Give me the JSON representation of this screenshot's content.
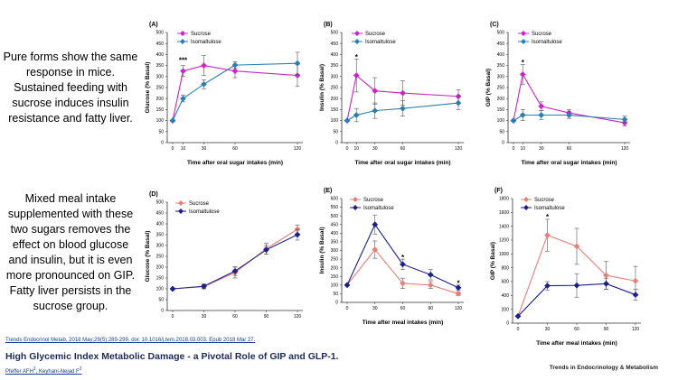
{
  "side_text_top": "Pure forms show the same response in mice. Sustained feeding with sucrose induces insulin resistance and fatty liver.",
  "side_text_bottom": "Mixed meal intake supplemented with these two sugars removes the effect on blood glucose and insulin, but it is even more pronounced on GIP. Fatty liver persists in the sucrose group.",
  "citation": {
    "journal_line": "Trends Endocrinol Metab. 2018 May;29(5):289-299. doi: 10.1016/j.tem.2018.03.003. Epub 2018 Mar 27.",
    "title": "High Glycemic Index Metabolic Damage - a Pivotal Role of GIP and GLP-1.",
    "authors": "Pfeffer AFH",
    "authors_sup1": "1",
    "authors_sep": ", ",
    "authors_2": "Keyhani-Nejad F",
    "authors_sup2": "2"
  },
  "journal_brand": "Trends in Endocrinology & Metabolism",
  "colors": {
    "mouse_sucrose": "#cc22cc",
    "mouse_isomaltulose": "#2a7fb0",
    "human_sucrose": "#e8807a",
    "human_isomaltulose": "#1a1f8a"
  },
  "chart_data": [
    {
      "id": "A",
      "panel_label": "(A)",
      "type": "line",
      "ylabel": "Glucose (% Basal)",
      "xlabel": "Time after oral sugar intakes (min)",
      "x": [
        0,
        10,
        30,
        60,
        120
      ],
      "xticks": [
        0,
        10,
        30,
        60,
        120
      ],
      "xtick_labels": [
        "0",
        "10",
        "30",
        "60",
        "120"
      ],
      "ylim": [
        0,
        500
      ],
      "yticks": [
        0,
        50,
        100,
        150,
        200,
        250,
        300,
        350,
        400,
        450,
        500
      ],
      "ytick_labels": [
        "0",
        "50",
        "100",
        "150",
        "200",
        "250",
        "300",
        "350",
        "400",
        "450",
        "500"
      ],
      "legend": [
        "Sucrose",
        "Isomaltulose"
      ],
      "series": [
        {
          "name": "Sucrose",
          "values": [
            100,
            325,
            350,
            325,
            305
          ],
          "err": [
            0,
            25,
            45,
            30,
            50
          ]
        },
        {
          "name": "Isomaltulose",
          "values": [
            100,
            200,
            265,
            352,
            360
          ],
          "err": [
            0,
            15,
            20,
            15,
            50
          ]
        }
      ],
      "annotations": [
        {
          "x": 10,
          "y": 375,
          "text": "***"
        }
      ]
    },
    {
      "id": "B",
      "panel_label": "(B)",
      "type": "line",
      "ylabel": "Insulin (% Basal)",
      "xlabel": "Time after oral sugar intakes (min)",
      "x": [
        0,
        10,
        30,
        60,
        120
      ],
      "xticks": [
        0,
        10,
        30,
        60,
        120
      ],
      "xtick_labels": [
        "0",
        "10",
        "30",
        "60",
        "120"
      ],
      "ylim": [
        0,
        500
      ],
      "yticks": [
        0,
        50,
        100,
        150,
        200,
        250,
        300,
        350,
        400,
        450,
        500
      ],
      "ytick_labels": [
        "0",
        "50",
        "100",
        "150",
        "200",
        "250",
        "300",
        "350",
        "400",
        "450",
        "500"
      ],
      "legend": [
        "Sucrose",
        "Isomaltulose"
      ],
      "series": [
        {
          "name": "Sucrose",
          "values": [
            100,
            305,
            235,
            225,
            210
          ],
          "err": [
            0,
            75,
            60,
            55,
            30
          ]
        },
        {
          "name": "Isomaltulose",
          "values": [
            100,
            125,
            145,
            155,
            180
          ],
          "err": [
            0,
            30,
            35,
            35,
            30
          ]
        }
      ],
      "annotations": [
        {
          "x": 10,
          "y": 390,
          "text": "*"
        }
      ]
    },
    {
      "id": "C",
      "panel_label": "(C)",
      "type": "line",
      "ylabel": "GIP (% Basal)",
      "xlabel": "Time after oral sugar intakes (min)",
      "x": [
        0,
        10,
        30,
        60,
        120
      ],
      "xticks": [
        0,
        10,
        30,
        60,
        120
      ],
      "xtick_labels": [
        "0",
        "10",
        "30",
        "60",
        "120"
      ],
      "ylim": [
        0,
        500
      ],
      "yticks": [
        0,
        50,
        100,
        150,
        200,
        250,
        300,
        350,
        400,
        450,
        500
      ],
      "ytick_labels": [
        "0",
        "50",
        "100",
        "150",
        "200",
        "250",
        "300",
        "350",
        "400",
        "450",
        "500"
      ],
      "legend": [
        "Sucrose",
        "Isomaltulose"
      ],
      "series": [
        {
          "name": "Sucrose",
          "values": [
            100,
            310,
            165,
            135,
            90
          ],
          "err": [
            0,
            45,
            20,
            15,
            15
          ]
        },
        {
          "name": "Isomaltulose",
          "values": [
            100,
            125,
            125,
            125,
            105
          ],
          "err": [
            0,
            25,
            20,
            15,
            15
          ]
        }
      ],
      "annotations": [
        {
          "x": 10,
          "y": 365,
          "text": "*"
        }
      ]
    },
    {
      "id": "D",
      "panel_label": "(D)",
      "type": "line",
      "ylabel": "Glucose (% Basal)",
      "xlabel": "",
      "x": [
        0,
        30,
        60,
        90,
        120
      ],
      "xticks": [
        0,
        30,
        60,
        90,
        120
      ],
      "xtick_labels": [
        "0",
        "30",
        "60",
        "90",
        "120"
      ],
      "ylim": [
        0,
        500
      ],
      "yticks": [
        0,
        50,
        100,
        150,
        200,
        250,
        300,
        350,
        400,
        450,
        500
      ],
      "ytick_labels": [
        "0",
        "50",
        "100",
        "150",
        "200",
        "250",
        "300",
        "350",
        "400",
        "450",
        "500"
      ],
      "legend": [
        "Sucrose",
        "Isomaltulose"
      ],
      "series": [
        {
          "name": "Sucrose",
          "values": [
            100,
            110,
            175,
            285,
            375
          ],
          "err": [
            0,
            10,
            25,
            25,
            20
          ]
        },
        {
          "name": "Isomaltulose",
          "values": [
            100,
            112,
            182,
            280,
            350
          ],
          "err": [
            0,
            10,
            20,
            20,
            25
          ]
        }
      ],
      "annotations": []
    },
    {
      "id": "E",
      "panel_label": "(E)",
      "type": "line",
      "ylabel": "Insulin (% Basal)",
      "xlabel": "Time after meal intakes (min)",
      "x": [
        0,
        30,
        60,
        90,
        120
      ],
      "xticks": [
        0,
        30,
        60,
        90,
        120
      ],
      "xtick_labels": [
        "0",
        "30",
        "60",
        "90",
        "120"
      ],
      "ylim": [
        0,
        600
      ],
      "yticks": [
        0,
        50,
        100,
        150,
        200,
        250,
        300,
        350,
        400,
        450,
        500,
        550,
        600
      ],
      "ytick_labels": [
        "0",
        "50",
        "100",
        "150",
        "200",
        "250",
        "300",
        "350",
        "400",
        "450",
        "500",
        "550",
        "600"
      ],
      "legend": [
        "Sucrose",
        "Isomaltulose"
      ],
      "series": [
        {
          "name": "Sucrose",
          "values": [
            100,
            305,
            110,
            100,
            50
          ],
          "err": [
            0,
            50,
            30,
            20,
            10
          ]
        },
        {
          "name": "Isomaltulose",
          "values": [
            100,
            450,
            220,
            160,
            85
          ],
          "err": [
            0,
            55,
            30,
            30,
            15
          ]
        }
      ],
      "annotations": [
        {
          "x": 60,
          "y": 262,
          "text": "*"
        },
        {
          "x": 120,
          "y": 112,
          "text": "*"
        }
      ]
    },
    {
      "id": "F",
      "panel_label": "(F)",
      "type": "line",
      "ylabel": "GIP (% Basal)",
      "xlabel": "Time after meal intakes (min)",
      "x": [
        0,
        30,
        60,
        90,
        120
      ],
      "xticks": [
        0,
        30,
        60,
        90,
        120
      ],
      "xtick_labels": [
        "0",
        "30",
        "60",
        "90",
        "120"
      ],
      "ylim": [
        0,
        1800
      ],
      "yticks": [
        0,
        200,
        400,
        600,
        800,
        1000,
        1200,
        1400,
        1600,
        1800
      ],
      "ytick_labels": [
        "0",
        "200",
        "400",
        "600",
        "800",
        "1000",
        "1200",
        "1400",
        "1600",
        "1800"
      ],
      "legend": [
        "Sucrose",
        "Isomaltulose"
      ],
      "series": [
        {
          "name": "Sucrose",
          "values": [
            100,
            1270,
            1110,
            690,
            610
          ],
          "err": [
            0,
            230,
            260,
            200,
            210
          ]
        },
        {
          "name": "Isomaltulose",
          "values": [
            100,
            540,
            545,
            570,
            410
          ],
          "err": [
            0,
            60,
            170,
            80,
            80
          ]
        }
      ],
      "annotations": [
        {
          "x": 30,
          "y": 1540,
          "text": "*"
        }
      ]
    }
  ]
}
